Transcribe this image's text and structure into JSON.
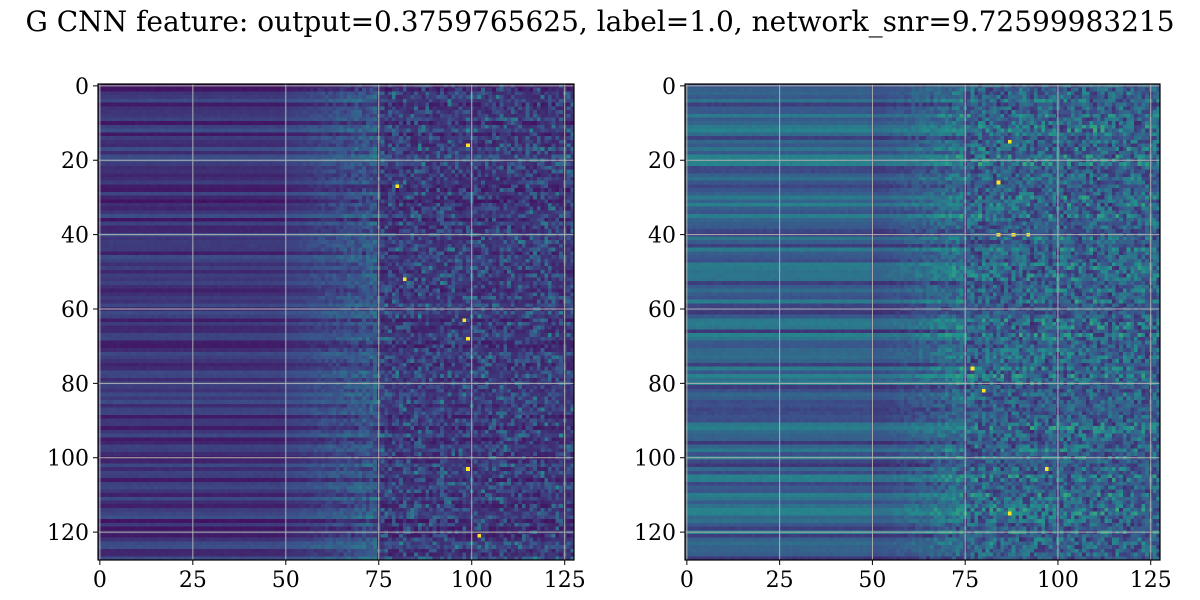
{
  "title": "G CNN feature: output=0.3759765625, label=1.0, network_snr=9.72599983215",
  "colormap": [
    "#440154",
    "#3b528b",
    "#21918c",
    "#5ec962",
    "#fde725"
  ],
  "chart_data": [
    {
      "type": "heatmap",
      "title": "",
      "xlabel": "",
      "ylabel": "",
      "rows": 128,
      "cols": 128,
      "xlim": [
        0,
        127
      ],
      "ylim": [
        127,
        0
      ],
      "xticks": [
        0,
        25,
        50,
        75,
        100,
        125
      ],
      "yticks": [
        0,
        20,
        40,
        60,
        80,
        100,
        120
      ],
      "grid": true,
      "hot_points": [
        [
          16,
          99
        ],
        [
          27,
          80
        ],
        [
          52,
          82
        ],
        [
          63,
          98
        ],
        [
          68,
          99
        ],
        [
          121,
          102
        ],
        [
          103,
          99
        ]
      ]
    },
    {
      "type": "heatmap",
      "title": "",
      "xlabel": "",
      "ylabel": "",
      "rows": 128,
      "cols": 128,
      "xlim": [
        0,
        127
      ],
      "ylim": [
        127,
        0
      ],
      "xticks": [
        0,
        25,
        50,
        75,
        100,
        125
      ],
      "yticks": [
        0,
        20,
        40,
        60,
        80,
        100,
        120
      ],
      "grid": true,
      "hot_points": [
        [
          15,
          87
        ],
        [
          26,
          84
        ],
        [
          40,
          84
        ],
        [
          40,
          88
        ],
        [
          40,
          92
        ],
        [
          76,
          77
        ],
        [
          82,
          80
        ],
        [
          103,
          97
        ],
        [
          115,
          87
        ]
      ]
    }
  ]
}
